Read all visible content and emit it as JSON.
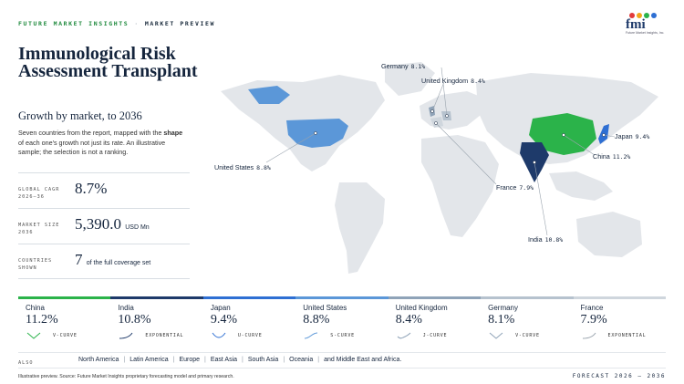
{
  "header": {
    "brand": "FUTURE MARKET INSIGHTS",
    "separator": "·",
    "section": "MARKET PREVIEW",
    "logo_text": "fmi",
    "logo_tagline": "Future Market Insights, Inc."
  },
  "title": "Immunological Risk Assessment Transplant",
  "subtitle": "Growth by market, to 2036",
  "description": {
    "part1": "Seven countries from the report, mapped with the ",
    "bold": "shape",
    "part2": " of each one's growth not just its rate. An illustrative sample; the selection is not a ranking."
  },
  "stats": {
    "cagr_label": "GLOBAL CAGR 2026–36",
    "cagr_value": "8.7%",
    "size_label": "MARKET SIZE 2036",
    "size_value": "5,390.0",
    "size_unit": "USD Mn",
    "countries_label": "COUNTRIES SHOWN",
    "countries_value": "7",
    "countries_note": "of the full coverage set"
  },
  "map_labels": [
    {
      "name": "Germany",
      "value": "8.1%"
    },
    {
      "name": "United Kingdom",
      "value": "8.4%"
    },
    {
      "name": "Japan",
      "value": "9.4%"
    },
    {
      "name": "China",
      "value": "11.2%"
    },
    {
      "name": "United States",
      "value": "8.8%"
    },
    {
      "name": "France",
      "value": "7.9%"
    },
    {
      "name": "India",
      "value": "10.8%"
    }
  ],
  "cards": [
    {
      "name": "China",
      "value": "11.2%",
      "curve": "V-CURVE",
      "color": "#2bb34a"
    },
    {
      "name": "India",
      "value": "10.8%",
      "curve": "EXPONENTIAL",
      "color": "#1e3a6a"
    },
    {
      "name": "Japan",
      "value": "9.4%",
      "curve": "U-CURVE",
      "color": "#2e6fd3"
    },
    {
      "name": "United States",
      "value": "8.8%",
      "curve": "S-CURVE",
      "color": "#5b97d8"
    },
    {
      "name": "United Kingdom",
      "value": "8.4%",
      "curve": "J-CURVE",
      "color": "#8fa3b8"
    },
    {
      "name": "Germany",
      "value": "8.1%",
      "curve": "V-CURVE",
      "color": "#b6c2ce"
    },
    {
      "name": "France",
      "value": "7.9%",
      "curve": "EXPONENTIAL",
      "color": "#cfd6dd"
    }
  ],
  "also": {
    "label": "ALSO",
    "regions": [
      "North America",
      "Latin America",
      "Europe",
      "East Asia",
      "South Asia",
      "Oceania",
      "and Middle East and Africa."
    ]
  },
  "footer": {
    "source": "Illustrative preview. Source: Future Market Insights proprietary forecasting model and primary research.",
    "forecast": "FORECAST 2026 – 2036"
  }
}
